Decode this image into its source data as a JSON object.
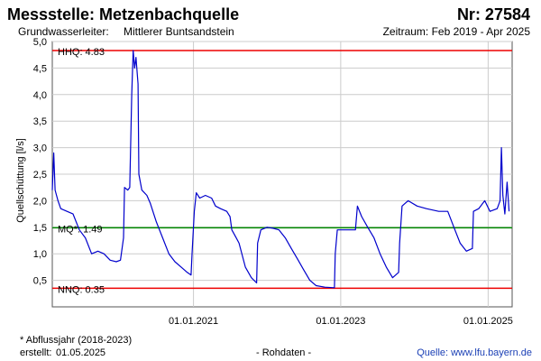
{
  "header": {
    "station": "Messstelle: Metzenbachquelle",
    "number": "Nr: 27584",
    "aquifer_label": "Grundwasserleiter:",
    "aquifer_value": "Mittlerer Buntsandstein",
    "period": "Zeitraum: Feb 2019 - Apr 2025"
  },
  "footer": {
    "note": "* Abflussjahr (2018-2023)",
    "created_label": "erstellt:",
    "created_value": "01.05.2025",
    "raw": "- Rohdaten -",
    "source": "Quelle: www.lfu.bayern.de"
  },
  "chart_data": {
    "type": "line",
    "ylabel": "Quellschüttung [l/s]",
    "ylim": [
      0,
      5.0
    ],
    "yticks": [
      "0,5",
      "1,0",
      "1,5",
      "2,0",
      "2,5",
      "3,0",
      "3,5",
      "4,0",
      "4,5",
      "5,0"
    ],
    "ytick_values": [
      0.5,
      1.0,
      1.5,
      2.0,
      2.5,
      3.0,
      3.5,
      4.0,
      4.5,
      5.0
    ],
    "xlim": [
      "2019-02-01",
      "2025-04-30"
    ],
    "xticks": [
      {
        "date": "2021-01-01",
        "label": "01.01.2021"
      },
      {
        "date": "2023-01-01",
        "label": "01.01.2023"
      },
      {
        "date": "2025-01-01",
        "label": "01.01.2025"
      }
    ],
    "grid": true,
    "colors": {
      "series": "#0000cc",
      "extreme": "#ee0000",
      "mean": "#008800",
      "grid": "#cccccc"
    },
    "reference_lines": [
      {
        "label": "HHQ: 4.83",
        "value": 4.83,
        "color": "#ee0000"
      },
      {
        "label": "MQ*: 1.49",
        "value": 1.49,
        "color": "#008800"
      },
      {
        "label": "NNQ: 0.35",
        "value": 0.35,
        "color": "#ee0000"
      }
    ],
    "series": [
      {
        "points": [
          [
            "2019-02-01",
            2.2
          ],
          [
            "2019-02-08",
            2.9
          ],
          [
            "2019-02-15",
            2.2
          ],
          [
            "2019-03-01",
            2.0
          ],
          [
            "2019-03-15",
            1.85
          ],
          [
            "2019-04-15",
            1.8
          ],
          [
            "2019-05-15",
            1.75
          ],
          [
            "2019-06-15",
            1.45
          ],
          [
            "2019-07-15",
            1.3
          ],
          [
            "2019-08-15",
            1.0
          ],
          [
            "2019-09-15",
            1.05
          ],
          [
            "2019-10-15",
            1.0
          ],
          [
            "2019-11-15",
            0.88
          ],
          [
            "2019-12-15",
            0.85
          ],
          [
            "2020-01-05",
            0.88
          ],
          [
            "2020-01-20",
            1.3
          ],
          [
            "2020-01-25",
            2.25
          ],
          [
            "2020-02-10",
            2.2
          ],
          [
            "2020-02-20",
            2.25
          ],
          [
            "2020-03-01",
            4.0
          ],
          [
            "2020-03-08",
            4.83
          ],
          [
            "2020-03-15",
            4.5
          ],
          [
            "2020-03-22",
            4.7
          ],
          [
            "2020-04-01",
            4.2
          ],
          [
            "2020-04-05",
            2.5
          ],
          [
            "2020-04-20",
            2.2
          ],
          [
            "2020-05-15",
            2.1
          ],
          [
            "2020-06-01",
            1.95
          ],
          [
            "2020-07-01",
            1.6
          ],
          [
            "2020-08-01",
            1.3
          ],
          [
            "2020-09-01",
            1.0
          ],
          [
            "2020-10-01",
            0.85
          ],
          [
            "2020-11-01",
            0.75
          ],
          [
            "2020-12-01",
            0.65
          ],
          [
            "2020-12-20",
            0.6
          ],
          [
            "2020-12-25",
            1.0
          ],
          [
            "2021-01-05",
            1.8
          ],
          [
            "2021-01-15",
            2.15
          ],
          [
            "2021-02-01",
            2.05
          ],
          [
            "2021-03-01",
            2.1
          ],
          [
            "2021-04-01",
            2.05
          ],
          [
            "2021-04-20",
            1.9
          ],
          [
            "2021-05-15",
            1.85
          ],
          [
            "2021-06-15",
            1.8
          ],
          [
            "2021-07-01",
            1.7
          ],
          [
            "2021-07-10",
            1.45
          ],
          [
            "2021-08-01",
            1.3
          ],
          [
            "2021-08-15",
            1.2
          ],
          [
            "2021-09-15",
            0.75
          ],
          [
            "2021-10-15",
            0.55
          ],
          [
            "2021-11-10",
            0.45
          ],
          [
            "2021-11-15",
            1.2
          ],
          [
            "2021-12-01",
            1.45
          ],
          [
            "2022-01-01",
            1.5
          ],
          [
            "2022-02-01",
            1.48
          ],
          [
            "2022-03-01",
            1.45
          ],
          [
            "2022-04-01",
            1.3
          ],
          [
            "2022-05-01",
            1.1
          ],
          [
            "2022-06-01",
            0.9
          ],
          [
            "2022-07-01",
            0.7
          ],
          [
            "2022-08-01",
            0.5
          ],
          [
            "2022-09-01",
            0.4
          ],
          [
            "2022-10-15",
            0.37
          ],
          [
            "2022-12-01",
            0.36
          ],
          [
            "2022-12-05",
            1.0
          ],
          [
            "2022-12-15",
            1.45
          ],
          [
            "2023-02-01",
            1.45
          ],
          [
            "2023-03-15",
            1.45
          ],
          [
            "2023-03-25",
            1.9
          ],
          [
            "2023-04-15",
            1.7
          ],
          [
            "2023-05-15",
            1.5
          ],
          [
            "2023-06-15",
            1.3
          ],
          [
            "2023-07-15",
            1.0
          ],
          [
            "2023-08-15",
            0.75
          ],
          [
            "2023-09-15",
            0.55
          ],
          [
            "2023-10-15",
            0.65
          ],
          [
            "2023-10-20",
            1.2
          ],
          [
            "2023-11-01",
            1.9
          ],
          [
            "2023-12-01",
            2.0
          ],
          [
            "2024-01-15",
            1.9
          ],
          [
            "2024-03-01",
            1.85
          ],
          [
            "2024-05-01",
            1.8
          ],
          [
            "2024-06-15",
            1.8
          ],
          [
            "2024-07-15",
            1.5
          ],
          [
            "2024-08-15",
            1.2
          ],
          [
            "2024-09-15",
            1.05
          ],
          [
            "2024-10-15",
            1.1
          ],
          [
            "2024-10-20",
            1.8
          ],
          [
            "2024-11-15",
            1.85
          ],
          [
            "2024-12-15",
            2.0
          ],
          [
            "2025-01-10",
            1.8
          ],
          [
            "2025-02-15",
            1.85
          ],
          [
            "2025-03-01",
            2.0
          ],
          [
            "2025-03-08",
            3.0
          ],
          [
            "2025-03-15",
            2.1
          ],
          [
            "2025-03-25",
            1.75
          ],
          [
            "2025-04-05",
            2.35
          ],
          [
            "2025-04-15",
            1.8
          ]
        ]
      }
    ]
  }
}
